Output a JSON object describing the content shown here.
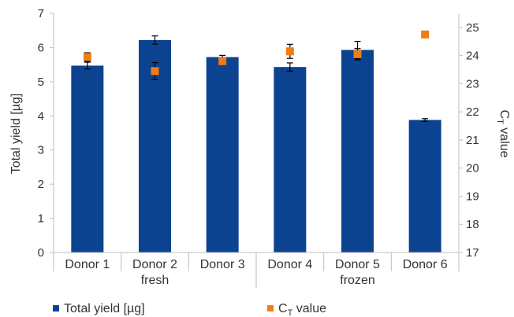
{
  "chart_data": {
    "type": "bar",
    "categories": [
      "Donor 1",
      "Donor 2",
      "Donor 3",
      "Donor 4",
      "Donor 5",
      "Donor 6"
    ],
    "groups": [
      {
        "label": "fresh",
        "from": 0,
        "to": 2
      },
      {
        "label": "frozen",
        "from": 3,
        "to": 5
      }
    ],
    "ylabel": "Total yield [µg]",
    "y2label_main": "C",
    "y2label_sub": "T",
    "y2label_rest": " value",
    "ylim": [
      0,
      7
    ],
    "y2lim": [
      17,
      25.5
    ],
    "yticks": [
      "0",
      "1",
      "2",
      "3",
      "4",
      "5",
      "6",
      "7"
    ],
    "y2ticks": [
      "17",
      "18",
      "19",
      "20",
      "21",
      "22",
      "23",
      "24",
      "25"
    ],
    "series": [
      {
        "name": "Total yield [µg]",
        "kind": "bar",
        "axis": "left",
        "color": "#0b4391",
        "values": [
          5.47,
          6.22,
          5.72,
          5.43,
          5.93,
          3.88
        ],
        "errors": [
          0.1,
          0.12,
          0.05,
          0.12,
          0.25,
          0.04
        ]
      },
      {
        "name": "C",
        "name_sub": "T",
        "name_rest": " value",
        "kind": "scatter",
        "axis": "right",
        "color": "#f07c15",
        "values": [
          23.95,
          23.45,
          23.8,
          24.15,
          24.05,
          24.75
        ],
        "errors": [
          0.15,
          0.3,
          0.1,
          0.25,
          0.2,
          0.1
        ]
      }
    ],
    "grid": false,
    "legend": "bottom"
  }
}
